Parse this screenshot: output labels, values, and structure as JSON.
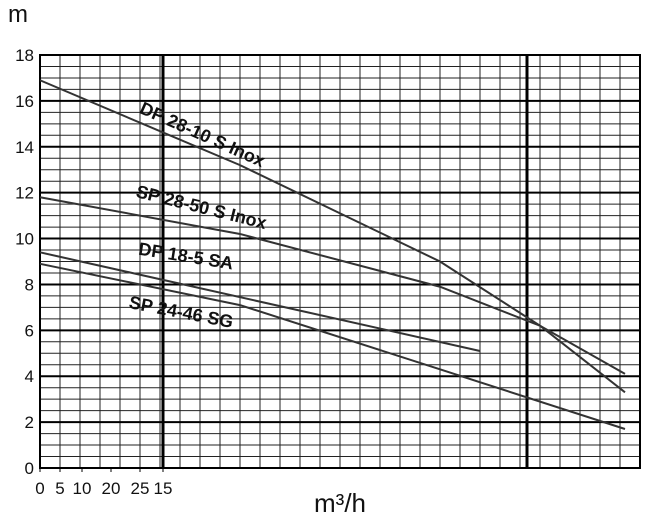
{
  "chart_data": {
    "type": "line",
    "y_label": "m",
    "x_label": "m³/h",
    "xlim": [
      0,
      60
    ],
    "ylim": [
      0,
      18
    ],
    "yticks": [
      0,
      2,
      4,
      6,
      8,
      10,
      12,
      14,
      16,
      18
    ],
    "xticks": [
      {
        "value": 0,
        "label": "0"
      },
      {
        "value": 2,
        "label": "5"
      },
      {
        "value": 4.2,
        "label": "10"
      },
      {
        "value": 7.1,
        "label": "20"
      },
      {
        "value": 10,
        "label": "25"
      },
      {
        "value": 12.3,
        "label": "15"
      }
    ],
    "grid": true,
    "series": [
      {
        "name": "DP 28-10 S Inox",
        "color": "#333333",
        "x": [
          0,
          20,
          40,
          50,
          58.5
        ],
        "values": [
          16.9,
          13.2,
          9.0,
          6.2,
          3.3
        ]
      },
      {
        "name": "SP 28-50 S Inox",
        "color": "#333333",
        "x": [
          0,
          20,
          40,
          50,
          58.5
        ],
        "values": [
          11.8,
          10.2,
          7.9,
          6.2,
          4.1
        ]
      },
      {
        "name": "DP 18-5 SA",
        "color": "#333333",
        "x": [
          0,
          44
        ],
        "values": [
          9.4,
          5.1
        ]
      },
      {
        "name": "SP 24-46 SG",
        "color": "#333333",
        "x": [
          0,
          20,
          40,
          58.5
        ],
        "values": [
          8.9,
          7.1,
          4.3,
          1.7
        ]
      }
    ]
  }
}
